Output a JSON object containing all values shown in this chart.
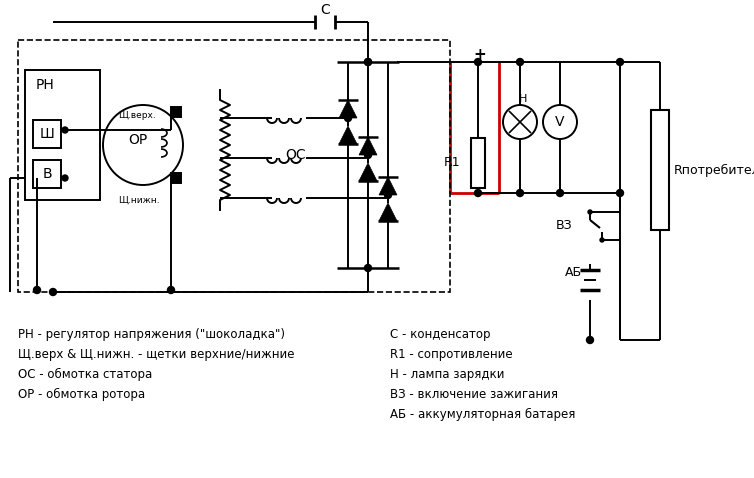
{
  "bg_color": "#ffffff",
  "line_color": "#000000",
  "red_color": "#cc0000",
  "legend_lines": [
    "РН - регулятор напряжения (\"шоколадка\")",
    "Щ.верх & Щ.нижн. - щетки верхние/нижние",
    "ОС - обмотка статора",
    "ОР - обмотка ротора"
  ],
  "legend_lines_right": [
    "С - конденсатор",
    "R1 - сопротивление",
    "Н - лампа зарядки",
    "ВЗ - включение зажигания",
    "АБ - аккумуляторная батарея"
  ],
  "labels": {
    "C": "С",
    "RN": "РН",
    "Sh": "Ш",
    "B": "В",
    "OR": "ОР",
    "OS": "ОС",
    "plus": "+",
    "H": "Н",
    "R1": "R1",
    "V3": "ВЗ",
    "AB": "АБ",
    "R_pot": "Rпотребители",
    "shch_verh": "Щ.верх.",
    "shch_nizh": "Щ.нижн."
  }
}
